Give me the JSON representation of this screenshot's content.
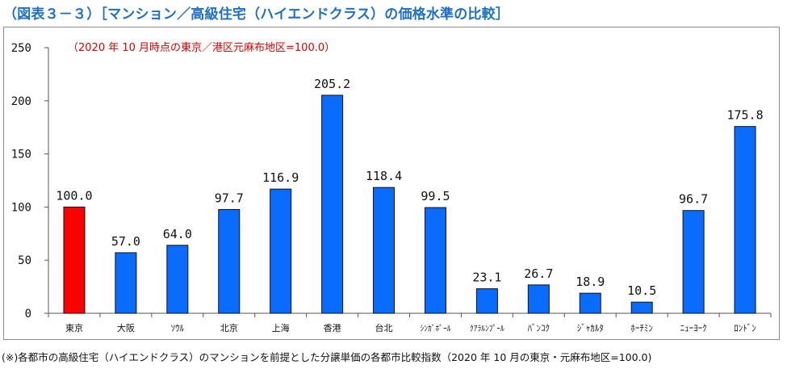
{
  "header": {
    "title": "（図表３－３）［マンション／高級住宅（ハイエンドクラス）の価格水準の比較］"
  },
  "footer": {
    "note": "(※)各都市の高級住宅（ハイエンドクラス）のマンションを前提とした分譲単価の各都市比較指数（2020 年 10 月の東京・元麻布地区=100.0)"
  },
  "chart_data": {
    "type": "bar",
    "title": "（図表３－３）［マンション／高級住宅（ハイエンドクラス）の価格水準の比較］",
    "annotation": "（2020 年 10 月時点の東京／港区元麻布地区=100.0）",
    "categories": [
      "東京",
      "大阪",
      "ｿｳﾙ",
      "北京",
      "上海",
      "香港",
      "台北",
      "ｼﾝｶﾞﾎﾟｰﾙ",
      "ｸｱﾗﾙﾝﾌﾟｰﾙ",
      "ﾊﾞﾝｺｸ",
      "ｼﾞｬｶﾙﾀ",
      "ﾎｰﾁﾐﾝ",
      "ﾆｭｰﾖｰｸ",
      "ﾛﾝﾄﾞﾝ"
    ],
    "values": [
      100.0,
      57.0,
      64.0,
      97.7,
      116.9,
      205.2,
      118.4,
      99.5,
      23.1,
      26.7,
      18.9,
      10.5,
      96.7,
      175.8
    ],
    "value_labels": [
      "100.0",
      "57.0",
      "64.0",
      "97.7",
      "116.9",
      "205.2",
      "118.4",
      "99.5",
      "23.1",
      "26.7",
      "18.9",
      "10.5",
      "96.7",
      "175.8"
    ],
    "highlight_index": 0,
    "yticks": [
      "0",
      "50",
      "100",
      "150",
      "200",
      "250"
    ],
    "ylim": [
      0,
      250
    ],
    "xlabel": "",
    "ylabel": "",
    "grid": false,
    "legend": "none",
    "colors": {
      "bar": "#0a6cff",
      "highlight": "#ff0000",
      "bar_edge": "#111111",
      "annotation": "#e00000",
      "axis": "#555555",
      "title": "#1f6fc5"
    }
  }
}
